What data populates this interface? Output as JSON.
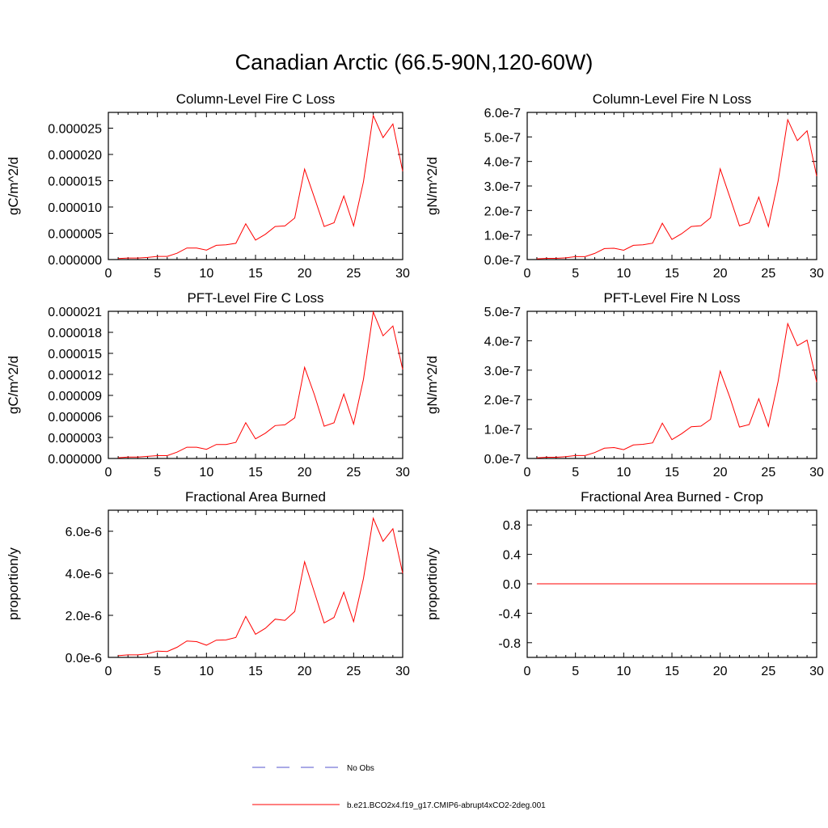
{
  "title": "Canadian Arctic (66.5-90N,120-60W)",
  "colors": {
    "model_line": "#ff0000",
    "obs_line": "#5555cc",
    "axis": "#000000"
  },
  "legend": {
    "entries": [
      {
        "label": "No Obs",
        "style": "dashed",
        "color": "#5555cc"
      },
      {
        "label": "b.e21.BCO2x4.f19_g17.CMIP6-abrupt4xCO2-2deg.001",
        "style": "solid",
        "color": "#ff0000"
      }
    ]
  },
  "chart_data": [
    {
      "type": "line",
      "title": "Column-Level Fire C Loss",
      "ylabel": "gC/m^2/d",
      "xlabel": "",
      "xlim": [
        0,
        30
      ],
      "ylim": [
        0,
        2.8e-05
      ],
      "x_ticks": [
        "0",
        "5",
        "10",
        "15",
        "20",
        "25",
        "30"
      ],
      "y_tick_values": [
        0,
        5e-06,
        1e-05,
        1.5e-05,
        2e-05,
        2.5e-05
      ],
      "y_tick_labels": [
        "0.000000",
        "0.000005",
        "0.000010",
        "0.000015",
        "0.000020",
        "0.000025"
      ],
      "series": [
        {
          "name": "b.e21.BCO2x4.f19_g17.CMIP6-abrupt4xCO2-2deg.001",
          "x": [
            1,
            2,
            3,
            4,
            5,
            6,
            7,
            8,
            9,
            10,
            11,
            12,
            13,
            14,
            15,
            16,
            17,
            18,
            19,
            20,
            21,
            22,
            23,
            24,
            25,
            26,
            27,
            28,
            29,
            30
          ],
          "values": [
            2e-07,
            3e-07,
            3e-07,
            4e-07,
            6e-07,
            6e-07,
            1.2e-06,
            2.2e-06,
            2.2e-06,
            1.8e-06,
            2.7e-06,
            2.8e-06,
            3.1e-06,
            6.8e-06,
            3.7e-06,
            4.8e-06,
            6.3e-06,
            6.4e-06,
            7.9e-06,
            1.72e-05,
            1.18e-05,
            6.3e-06,
            7e-06,
            1.21e-05,
            6.4e-06,
            1.48e-05,
            2.74e-05,
            2.32e-05,
            2.58e-05,
            1.68e-05
          ]
        }
      ]
    },
    {
      "type": "line",
      "title": "Column-Level Fire N Loss",
      "ylabel": "gN/m^2/d",
      "xlabel": "",
      "xlim": [
        0,
        30
      ],
      "ylim": [
        0,
        6e-07
      ],
      "x_ticks": [
        "0",
        "5",
        "10",
        "15",
        "20",
        "25",
        "30"
      ],
      "y_tick_values": [
        0,
        1e-07,
        2e-07,
        3e-07,
        4e-07,
        5e-07,
        6e-07
      ],
      "y_tick_labels": [
        "0.0e-7",
        "1.0e-7",
        "2.0e-7",
        "3.0e-7",
        "4.0e-7",
        "5.0e-7",
        "6.0e-7"
      ],
      "series": [
        {
          "name": "b.e21.BCO2x4.f19_g17.CMIP6-abrupt4xCO2-2deg.001",
          "x": [
            1,
            2,
            3,
            4,
            5,
            6,
            7,
            8,
            9,
            10,
            11,
            12,
            13,
            14,
            15,
            16,
            17,
            18,
            19,
            20,
            21,
            22,
            23,
            24,
            25,
            26,
            27,
            28,
            29,
            30
          ],
          "values": [
            3e-09,
            5e-09,
            5e-09,
            7e-09,
            1.2e-08,
            1.2e-08,
            2.5e-08,
            4.5e-08,
            4.6e-08,
            3.8e-08,
            5.8e-08,
            6e-08,
            6.7e-08,
            1.48e-07,
            8.2e-08,
            1.05e-07,
            1.35e-07,
            1.38e-07,
            1.7e-07,
            3.7e-07,
            2.55e-07,
            1.37e-07,
            1.5e-07,
            2.55e-07,
            1.35e-07,
            3.2e-07,
            5.7e-07,
            4.85e-07,
            5.25e-07,
            3.4e-07
          ]
        }
      ]
    },
    {
      "type": "line",
      "title": "PFT-Level Fire C Loss",
      "ylabel": "gC/m^2/d",
      "xlabel": "",
      "xlim": [
        0,
        30
      ],
      "ylim": [
        0,
        2.1e-05
      ],
      "x_ticks": [
        "0",
        "5",
        "10",
        "15",
        "20",
        "25",
        "30"
      ],
      "y_tick_values": [
        0,
        3e-06,
        6e-06,
        9e-06,
        1.2e-05,
        1.5e-05,
        1.8e-05,
        2.1e-05
      ],
      "y_tick_labels": [
        "0.000000",
        "0.000003",
        "0.000006",
        "0.000009",
        "0.000012",
        "0.000015",
        "0.000018",
        "0.000021"
      ],
      "series": [
        {
          "name": "b.e21.BCO2x4.f19_g17.CMIP6-abrupt4xCO2-2deg.001",
          "x": [
            1,
            2,
            3,
            4,
            5,
            6,
            7,
            8,
            9,
            10,
            11,
            12,
            13,
            14,
            15,
            16,
            17,
            18,
            19,
            20,
            21,
            22,
            23,
            24,
            25,
            26,
            27,
            28,
            29,
            30
          ],
          "values": [
            1e-07,
            2e-07,
            2e-07,
            3e-07,
            4e-07,
            4e-07,
            9e-07,
            1.6e-06,
            1.6e-06,
            1.3e-06,
            2e-06,
            2e-06,
            2.3e-06,
            5.1e-06,
            2.8e-06,
            3.6e-06,
            4.7e-06,
            4.8e-06,
            5.8e-06,
            1.3e-05,
            9.1e-06,
            4.6e-06,
            5.1e-06,
            9.2e-06,
            4.9e-06,
            1.13e-05,
            2.09e-05,
            1.75e-05,
            1.89e-05,
            1.27e-05
          ]
        }
      ]
    },
    {
      "type": "line",
      "title": "PFT-Level Fire N Loss",
      "ylabel": "gN/m^2/d",
      "xlabel": "",
      "xlim": [
        0,
        30
      ],
      "ylim": [
        0,
        5e-07
      ],
      "x_ticks": [
        "0",
        "5",
        "10",
        "15",
        "20",
        "25",
        "30"
      ],
      "y_tick_values": [
        0,
        1e-07,
        2e-07,
        3e-07,
        4e-07,
        5e-07
      ],
      "y_tick_labels": [
        "0.0e-7",
        "1.0e-7",
        "2.0e-7",
        "3.0e-7",
        "4.0e-7",
        "5.0e-7"
      ],
      "series": [
        {
          "name": "b.e21.BCO2x4.f19_g17.CMIP6-abrupt4xCO2-2deg.001",
          "x": [
            1,
            2,
            3,
            4,
            5,
            6,
            7,
            8,
            9,
            10,
            11,
            12,
            13,
            14,
            15,
            16,
            17,
            18,
            19,
            20,
            21,
            22,
            23,
            24,
            25,
            26,
            27,
            28,
            29,
            30
          ],
          "values": [
            2e-09,
            4e-09,
            4e-09,
            6e-09,
            1e-08,
            1e-08,
            2e-08,
            3.5e-08,
            3.7e-08,
            3e-08,
            4.6e-08,
            4.8e-08,
            5.3e-08,
            1.2e-07,
            6.4e-08,
            8.4e-08,
            1.08e-07,
            1.1e-07,
            1.33e-07,
            2.97e-07,
            2.08e-07,
            1.07e-07,
            1.15e-07,
            2.03e-07,
            1.09e-07,
            2.62e-07,
            4.58e-07,
            3.83e-07,
            4.02e-07,
            2.6e-07
          ]
        }
      ]
    },
    {
      "type": "line",
      "title": "Fractional Area Burned",
      "ylabel": "proportion/y",
      "xlabel": "",
      "xlim": [
        0,
        30
      ],
      "ylim": [
        0,
        7e-06
      ],
      "x_ticks": [
        "0",
        "5",
        "10",
        "15",
        "20",
        "25",
        "30"
      ],
      "y_tick_values": [
        0,
        2e-06,
        4e-06,
        6e-06
      ],
      "y_tick_labels": [
        "0.0e-6",
        "2.0e-6",
        "4.0e-6",
        "6.0e-6"
      ],
      "series": [
        {
          "name": "b.e21.BCO2x4.f19_g17.CMIP6-abrupt4xCO2-2deg.001",
          "x": [
            1,
            2,
            3,
            4,
            5,
            6,
            7,
            8,
            9,
            10,
            11,
            12,
            13,
            14,
            15,
            16,
            17,
            18,
            19,
            20,
            21,
            22,
            23,
            24,
            25,
            26,
            27,
            28,
            29,
            30
          ],
          "values": [
            8e-08,
            1.2e-07,
            1.2e-07,
            1.7e-07,
            3e-07,
            2.8e-07,
            4.8e-07,
            7.8e-07,
            7.5e-07,
            5.8e-07,
            8.2e-07,
            8.3e-07,
            9.5e-07,
            1.95e-06,
            1.1e-06,
            1.38e-06,
            1.82e-06,
            1.76e-06,
            2.18e-06,
            4.55e-06,
            3.1e-06,
            1.64e-06,
            1.9e-06,
            3.1e-06,
            1.7e-06,
            3.75e-06,
            6.62e-06,
            5.52e-06,
            6.12e-06,
            4e-06
          ]
        }
      ]
    },
    {
      "type": "line",
      "title": "Fractional Area Burned - Crop",
      "ylabel": "proportion/y",
      "xlabel": "",
      "xlim": [
        0,
        30
      ],
      "ylim": [
        -1,
        1
      ],
      "x_ticks": [
        "0",
        "5",
        "10",
        "15",
        "20",
        "25",
        "30"
      ],
      "y_tick_values": [
        -0.8,
        -0.4,
        0,
        0.4,
        0.8
      ],
      "y_tick_labels": [
        "-0.8",
        "-0.4",
        "0.0",
        "0.4",
        "0.8"
      ],
      "series": [
        {
          "name": "b.e21.BCO2x4.f19_g17.CMIP6-abrupt4xCO2-2deg.001",
          "x": [
            1,
            2,
            3,
            4,
            5,
            6,
            7,
            8,
            9,
            10,
            11,
            12,
            13,
            14,
            15,
            16,
            17,
            18,
            19,
            20,
            21,
            22,
            23,
            24,
            25,
            26,
            27,
            28,
            29,
            30
          ],
          "values": [
            0,
            0,
            0,
            0,
            0,
            0,
            0,
            0,
            0,
            0,
            0,
            0,
            0,
            0,
            0,
            0,
            0,
            0,
            0,
            0,
            0,
            0,
            0,
            0,
            0,
            0,
            0,
            0,
            0,
            0
          ]
        }
      ]
    }
  ]
}
